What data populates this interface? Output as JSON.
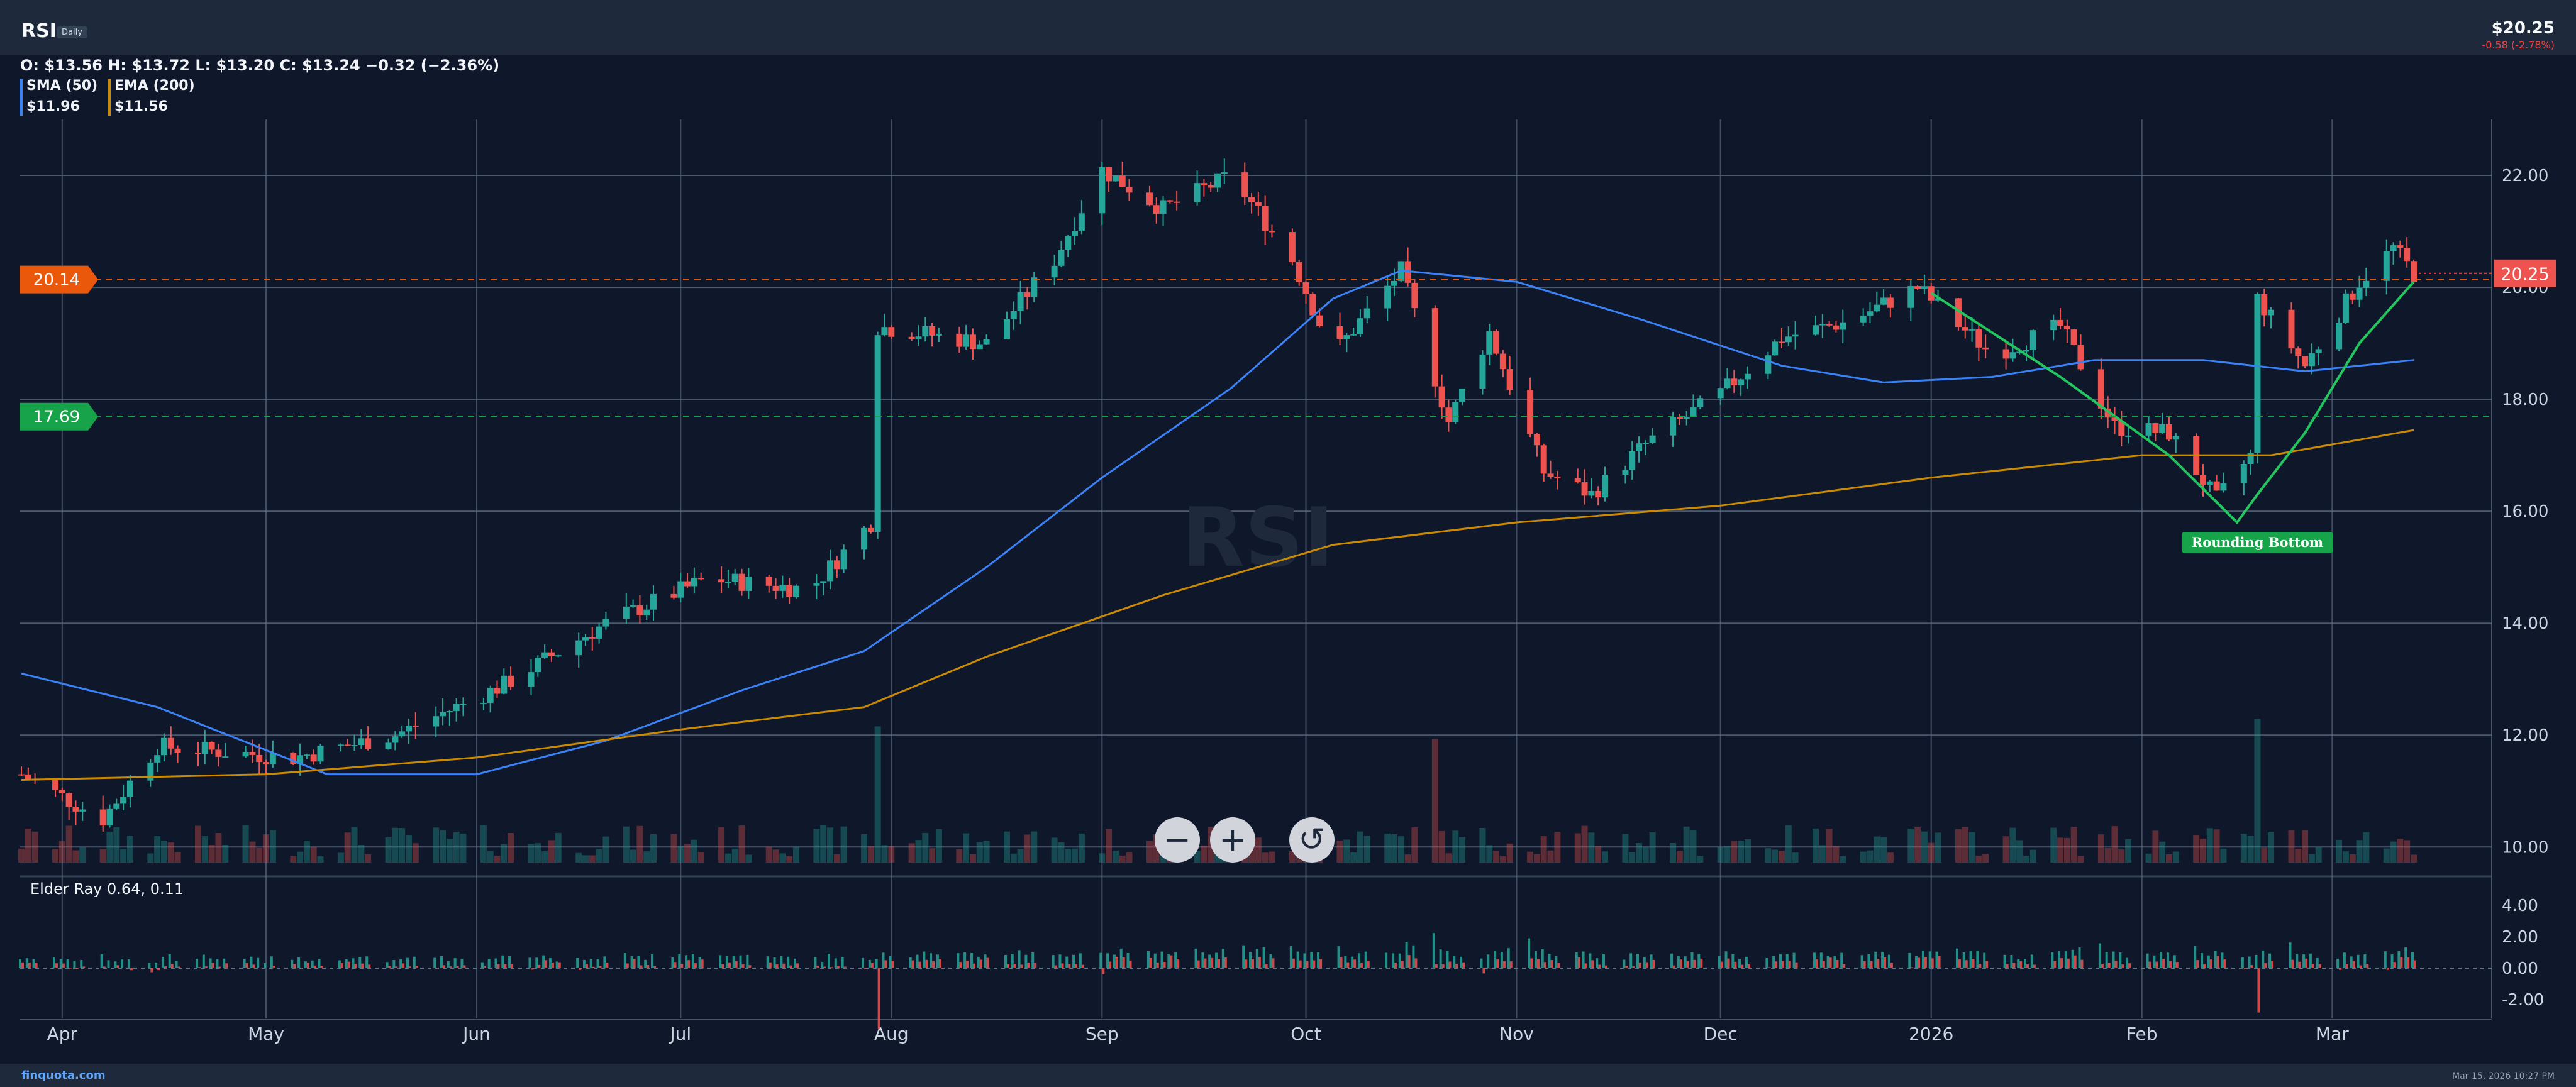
{
  "header": {
    "ticker": "RSI",
    "interval": "Daily",
    "price": "$20.25",
    "change": "-0.58 (-2.78%)"
  },
  "ohlc_text": "O: $13.56 H: $13.72 L: $13.20 C: $13.24 −0.32 (−2.36%)",
  "legend": [
    {
      "name": "SMA (50)",
      "value": "$11.96",
      "color": "#3b82f6"
    },
    {
      "name": "EMA (200)",
      "value": "$11.56",
      "color": "#ca8a04"
    }
  ],
  "levels": [
    {
      "value": "20.14",
      "color": "#ea580c"
    },
    {
      "value": "17.69",
      "color": "#16a34a"
    }
  ],
  "last_price_label": "20.25",
  "pattern_label": "Rounding Bottom",
  "watermark": "RSI",
  "indicator_title": "Elder Ray 0.64, 0.11",
  "controls": {
    "zoom_out": "−",
    "zoom_in": "+",
    "reset": "↺"
  },
  "footer": {
    "brand": "finquota.com",
    "timestamp": "Mar 15, 2026 10:27 PM"
  },
  "colors": {
    "up": "#26a69a",
    "down": "#ef5350",
    "sma": "#3b82f6",
    "ema": "#ca8a04",
    "pattern": "#22c55e"
  },
  "chart_data": {
    "type": "candlestick",
    "title": "RSI",
    "x_tick_labels": [
      "Apr",
      "May",
      "Jun",
      "Jul",
      "Aug",
      "Sep",
      "Oct",
      "Nov",
      "Dec",
      "2026",
      "Feb",
      "Mar"
    ],
    "y_tick_labels": [
      "10.00",
      "12.00",
      "14.00",
      "16.00",
      "18.00",
      "20.00",
      "22.00"
    ],
    "ylim": [
      9.7,
      23.0
    ],
    "indicator_tick_labels": [
      "4.00",
      "2.00",
      "0.00",
      "-2.00"
    ],
    "indicator_ylim": [
      -3.2,
      5.6
    ],
    "price_anchors": [
      [
        "2025-03-26",
        11.3
      ],
      [
        "2025-04-07",
        10.5
      ],
      [
        "2025-04-15",
        11.8
      ],
      [
        "2025-05-05",
        11.6
      ],
      [
        "2025-05-20",
        12.0
      ],
      [
        "2025-06-05",
        12.9
      ],
      [
        "2025-06-20",
        14.0
      ],
      [
        "2025-07-05",
        14.8
      ],
      [
        "2025-07-20",
        14.6
      ],
      [
        "2025-07-29",
        15.8
      ],
      [
        "2025-07-30",
        19.3
      ],
      [
        "2025-08-15",
        19.0
      ],
      [
        "2025-08-25",
        20.5
      ],
      [
        "2025-09-01",
        22.1
      ],
      [
        "2025-09-10",
        21.4
      ],
      [
        "2025-09-20",
        22.0
      ],
      [
        "2025-09-29",
        20.5
      ],
      [
        "2025-10-05",
        18.8
      ],
      [
        "2025-10-15",
        20.3
      ],
      [
        "2025-10-22",
        17.6
      ],
      [
        "2025-10-28",
        19.2
      ],
      [
        "2025-11-05",
        16.7
      ],
      [
        "2025-11-12",
        16.3
      ],
      [
        "2025-11-20",
        17.2
      ],
      [
        "2025-12-01",
        18.1
      ],
      [
        "2025-12-10",
        19.1
      ],
      [
        "2025-12-20",
        19.4
      ],
      [
        "2025-12-30",
        20.0
      ],
      [
        "2026-01-10",
        18.8
      ],
      [
        "2026-01-20",
        19.3
      ],
      [
        "2026-01-28",
        17.5
      ],
      [
        "2026-02-05",
        17.4
      ],
      [
        "2026-02-12",
        16.2
      ],
      [
        "2026-02-17",
        17.0
      ],
      [
        "2026-02-18",
        19.8
      ],
      [
        "2026-02-25",
        18.6
      ],
      [
        "2026-03-05",
        20.1
      ],
      [
        "2026-03-10",
        20.7
      ],
      [
        "2026-03-13",
        20.25
      ]
    ],
    "sma_50": [
      [
        "2025-03-26",
        13.1
      ],
      [
        "2025-04-15",
        12.5
      ],
      [
        "2025-05-10",
        11.3
      ],
      [
        "2025-06-01",
        11.3
      ],
      [
        "2025-06-20",
        11.9
      ],
      [
        "2025-07-10",
        12.8
      ],
      [
        "2025-07-28",
        13.5
      ],
      [
        "2025-08-15",
        15.0
      ],
      [
        "2025-09-01",
        16.6
      ],
      [
        "2025-09-20",
        18.2
      ],
      [
        "2025-10-05",
        19.8
      ],
      [
        "2025-10-15",
        20.3
      ],
      [
        "2025-11-01",
        20.1
      ],
      [
        "2025-11-20",
        19.4
      ],
      [
        "2025-12-10",
        18.6
      ],
      [
        "2025-12-25",
        18.3
      ],
      [
        "2026-01-10",
        18.4
      ],
      [
        "2026-01-25",
        18.7
      ],
      [
        "2026-02-10",
        18.7
      ],
      [
        "2026-02-25",
        18.5
      ],
      [
        "2026-03-13",
        18.7
      ]
    ],
    "ema_200": [
      [
        "2025-03-26",
        11.2
      ],
      [
        "2025-05-01",
        11.3
      ],
      [
        "2025-06-01",
        11.6
      ],
      [
        "2025-07-01",
        12.1
      ],
      [
        "2025-07-28",
        12.5
      ],
      [
        "2025-08-15",
        13.4
      ],
      [
        "2025-09-10",
        14.5
      ],
      [
        "2025-10-05",
        15.4
      ],
      [
        "2025-11-01",
        15.8
      ],
      [
        "2025-12-01",
        16.1
      ],
      [
        "2026-01-01",
        16.6
      ],
      [
        "2026-02-01",
        17.0
      ],
      [
        "2026-02-20",
        17.0
      ],
      [
        "2026-03-13",
        17.45
      ]
    ],
    "pattern": {
      "name": "Rounding Bottom",
      "points": [
        [
          "2026-01-01",
          19.9
        ],
        [
          "2026-01-20",
          18.4
        ],
        [
          "2026-02-05",
          17.0
        ],
        [
          "2026-02-15",
          15.8
        ],
        [
          "2026-02-18",
          16.3
        ],
        [
          "2026-02-25",
          17.4
        ],
        [
          "2026-03-05",
          19.0
        ],
        [
          "2026-03-13",
          20.1
        ]
      ]
    }
  }
}
